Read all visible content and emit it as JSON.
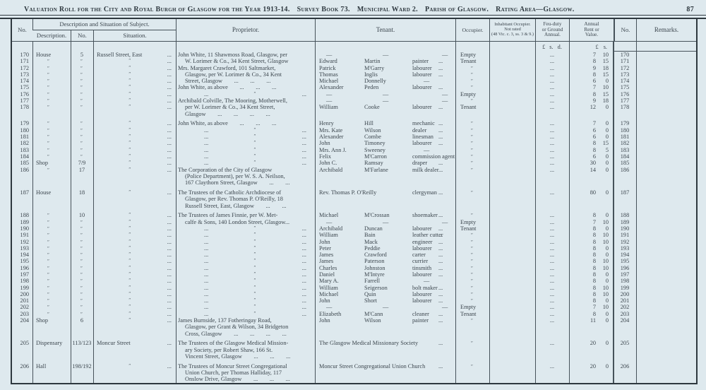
{
  "page": {
    "title_segments": [
      "Valuation Roll for the City and Royal Burgh of Glasgow for the Year 1913-14.",
      "Survey Book 73.",
      "Municipal Ward 2.",
      "Parish of Glasgow.",
      "Rating Area—Glasgow."
    ],
    "page_number": "87"
  },
  "header": {
    "col_no_left": "No.",
    "col_group": "Description and Situation of Subject.",
    "col_description": "Description.",
    "col_no2": "No.",
    "col_situation": "Situation.",
    "col_proprietor": "Proprietor.",
    "col_tenant": "Tenant.",
    "col_occupier": "Occupier.",
    "col_inhabitant_lines": [
      "Inhabitant Occupier.",
      "Not rated",
      "(48 Vic. c. 3, ss. 3 & 9.)"
    ],
    "col_feu_lines": [
      "Feu-duty",
      "or Ground",
      "Annual."
    ],
    "col_rent_lines": [
      "Annual",
      "Rent or",
      "Value."
    ],
    "col_no_right": "No.",
    "col_remarks": "Remarks.",
    "money_feu": "£ s. d.",
    "money_rent": "£ s."
  },
  "table": {
    "rows": [
      {
        "n": "170",
        "d": "House",
        "n2": "5",
        "s": "Russell Street, East",
        "sd": "...",
        "p": "John White, 11 Shawmoss Road, Glasgow, per",
        "t1": "—",
        "t2": "—",
        "t3": "—",
        "o": "Empty",
        "f": "...",
        "r": "7 10",
        "n3": "170"
      },
      {
        "n": "171",
        "d": "″",
        "n2": "″",
        "s": "″",
        "sd": "...",
        "p": "W. Lorimer & Co., 34 Kent Street, Glasgow",
        "pi": 1,
        "t1": "Edward",
        "t2": "Martin",
        "t3": "painter",
        "td": "...",
        "o": "Tenant",
        "f": "...",
        "r": "8 15",
        "n3": "171"
      },
      {
        "n": "172",
        "d": "″",
        "n2": "″",
        "s": "″",
        "sd": "...",
        "p": "Mrs. Margaret Crawford, 101 Saltmarket,",
        "t1": "Patrick",
        "t2": "M'Garry",
        "t3": "labourer",
        "td": "...",
        "o": "″",
        "f": "...",
        "r": "9 18",
        "n3": "172"
      },
      {
        "n": "173",
        "d": "″",
        "n2": "″",
        "s": "″",
        "sd": "...",
        "p": "Glasgow, per W. Lorimer & Co., 34 Kent",
        "pi": 1,
        "t1": "Thomas",
        "t2": "Inglis",
        "t3": "labourer",
        "td": "...",
        "o": "″",
        "f": "...",
        "r": "8 15",
        "n3": "173"
      },
      {
        "n": "174",
        "d": "″",
        "n2": "″",
        "s": "″",
        "sd": "...",
        "p": "Street, Glasgow  ...  ...  ...",
        "pi": 1,
        "t1": "Michael",
        "t2": "Donnelly",
        "t3": "—",
        "o": "″",
        "f": "...",
        "r": "6 0",
        "n3": "174"
      },
      {
        "n": "175",
        "d": "″",
        "n2": "″",
        "s": "″",
        "sd": "...",
        "p": "John White, as above  ...  ...  ...",
        "t1": "Alexander",
        "t2": "Peden",
        "t3": "labourer",
        "td": "...",
        "o": "″",
        "f": "...",
        "r": "7 10",
        "n3": "175"
      },
      {
        "n": "176",
        "d": "″",
        "n2": "″",
        "s": "″",
        "sd": "...",
        "p": "... ″ ...",
        "t1": "—",
        "t2": "—",
        "t3": "—",
        "o": "Empty",
        "f": "...",
        "r": "8 15",
        "n3": "176"
      },
      {
        "n": "177",
        "d": "″",
        "n2": "″",
        "s": "″",
        "sd": "...",
        "p": "Archibald Colville, The Mooring, Motherwell,",
        "t1": "—",
        "t2": "—",
        "t3": "—",
        "o": "″",
        "f": "...",
        "r": "9 18",
        "n3": "177"
      },
      {
        "n": "178",
        "d": "″",
        "n2": "″",
        "s": "″",
        "sd": "...",
        "p": "per W. Lorimer & Co., 34 Kent Street,",
        "pi": 1,
        "t1": "William",
        "t2": "Cooke",
        "t3": "labourer",
        "td": "...",
        "o": "Tenant",
        "f": "...",
        "r": "12 0",
        "n3": "178"
      },
      {
        "p": "Glasgow  ...  ...  ...  ...",
        "pi": 1
      },
      {
        "gap": 1,
        "n": "179",
        "d": "″",
        "n2": "″",
        "s": "″",
        "sd": "...",
        "p": "John White, as above  ...  ...  ...",
        "t1": "Henry",
        "t2": "Hill",
        "t3": "mechanic",
        "td": "...",
        "o": "″",
        "f": "...",
        "r": "7 0",
        "n3": "179"
      },
      {
        "n": "180",
        "d": "″",
        "n2": "″",
        "s": "″",
        "sd": "...",
        "p": "... ″ ...",
        "t1": "Mrs. Kate",
        "t2": "Wilson",
        "t3": "dealer",
        "td": "...",
        "o": "″",
        "f": "...",
        "r": "6 0",
        "n3": "180"
      },
      {
        "n": "181",
        "d": "″",
        "n2": "″",
        "s": "″",
        "sd": "...",
        "p": "... ″ ...",
        "t1": "Alexander",
        "t2": "Combe",
        "t3": "linesman",
        "td": "...",
        "o": "″",
        "f": "...",
        "r": "6 0",
        "n3": "181"
      },
      {
        "n": "182",
        "d": "″",
        "n2": "″",
        "s": "″",
        "sd": "...",
        "p": "... ″ ...",
        "t1": "John",
        "t2": "Timoney",
        "t3": "labourer",
        "td": "...",
        "o": "″",
        "f": "...",
        "r": "8 15",
        "n3": "182"
      },
      {
        "n": "183",
        "d": "″",
        "n2": "″",
        "s": "″",
        "sd": "...",
        "p": "... ″ ...",
        "t1": "Mrs. Ann J.",
        "t2": "Sweeney",
        "t3": "—",
        "o": "″",
        "f": "...",
        "r": "8 5",
        "n3": "183"
      },
      {
        "n": "184",
        "d": "″",
        "n2": "″",
        "s": "″",
        "sd": "...",
        "p": "... ″ ...",
        "t1": "Felix",
        "t2": "M'Carron",
        "t3": "commission agent",
        "o": "″",
        "f": "...",
        "r": "6 0",
        "n3": "184"
      },
      {
        "n": "185",
        "d": "Shop",
        "n2": "7/9",
        "s": "″",
        "sd": "...",
        "p": "... ″ ...",
        "t1": "John C.",
        "t2": "Ramsay",
        "t3": "draper",
        "td": "...",
        "o": "″",
        "f": "...",
        "r": "30 0",
        "n3": "185"
      },
      {
        "n": "186",
        "d": "″",
        "n2": "17",
        "s": "″",
        "sd": "...",
        "p": "The Corporation of the City of Glasgow",
        "t1": "Archibald",
        "t2": "M'Farlane",
        "t3": "milk dealer",
        "td": "...",
        "o": "″",
        "f": "...",
        "r": "14 0",
        "n3": "186"
      },
      {
        "p": "(Police Department), per W. S. A. Neilson,",
        "pi": 1
      },
      {
        "p": "167 Claythorn Street, Glasgow  ...  ...",
        "pi": 1
      },
      {
        "gap": 1,
        "n": "187",
        "d": "House",
        "n2": "18",
        "s": "″",
        "sd": "...",
        "p": "The Trustees of the Catholic Archdiocese of",
        "t1": "Rev. Thomas P. O'Reilly",
        "t2": "",
        "t3": "clergyman",
        "td": "...",
        "o": "″",
        "f": "...",
        "r": "80 0",
        "n3": "187"
      },
      {
        "p": "Glasgow, per Rev. Thomas P. O'Reilly, 18",
        "pi": 1
      },
      {
        "p": "Russell Street, East, Glasgow  ...  ...",
        "pi": 1
      },
      {
        "gap": 1,
        "n": "188",
        "d": "″",
        "n2": "10",
        "s": "″",
        "sd": "...",
        "p": "The Trustees of James Finnie, per W. Met-",
        "t1": "Michael",
        "t2": "M'Crossan",
        "t3": "shoemaker",
        "td": "...",
        "o": "″",
        "f": "...",
        "r": "8 0",
        "n3": "188"
      },
      {
        "n": "189",
        "d": "″",
        "n2": "″",
        "s": "″",
        "sd": "...",
        "p": "calfe & Sons, 140 London Street, Glasgow...",
        "pi": 1,
        "t1": "—",
        "t2": "—",
        "t3": "—",
        "o": "Empty",
        "f": "...",
        "r": "7 10",
        "n3": "189"
      },
      {
        "n": "190",
        "d": "″",
        "n2": "″",
        "s": "″",
        "sd": "...",
        "p": "... ″ ...",
        "t1": "Archibald",
        "t2": "Duncan",
        "t3": "labourer",
        "td": "...",
        "o": "Tenant",
        "f": "...",
        "r": "8 0",
        "n3": "190"
      },
      {
        "n": "191",
        "d": "″",
        "n2": "″",
        "s": "″",
        "sd": "...",
        "p": "... ″ ...",
        "t1": "William",
        "t2": "Bain",
        "t3": "leather cutter",
        "td": "...",
        "o": "″",
        "f": "...",
        "r": "8 10",
        "n3": "191"
      },
      {
        "n": "192",
        "d": "″",
        "n2": "″",
        "s": "″",
        "sd": "...",
        "p": "... ″ ...",
        "t1": "John",
        "t2": "Mack",
        "t3": "engineer",
        "td": "...",
        "o": "″",
        "f": "...",
        "r": "8 10",
        "n3": "192"
      },
      {
        "n": "193",
        "d": "″",
        "n2": "″",
        "s": "″",
        "sd": "...",
        "p": "... ″ ...",
        "t1": "Peter",
        "t2": "Peddie",
        "t3": "labourer",
        "td": "...",
        "o": "″",
        "f": "...",
        "r": "8 0",
        "n3": "193"
      },
      {
        "n": "194",
        "d": "″",
        "n2": "″",
        "s": "″",
        "sd": "...",
        "p": "... ″ ...",
        "t1": "James",
        "t2": "Crawford",
        "t3": "carter",
        "td": "...",
        "o": "″",
        "f": "...",
        "r": "8 0",
        "n3": "194"
      },
      {
        "n": "195",
        "d": "″",
        "n2": "″",
        "s": "″",
        "sd": "...",
        "p": "... ″ ...",
        "t1": "James",
        "t2": "Paterson",
        "t3": "currier",
        "td": "...",
        "o": "″",
        "f": "...",
        "r": "8 10",
        "n3": "195"
      },
      {
        "n": "196",
        "d": "″",
        "n2": "″",
        "s": "″",
        "sd": "...",
        "p": "... ″ ...",
        "t1": "Charles",
        "t2": "Johnston",
        "t3": "tinsmith",
        "td": "...",
        "o": "″",
        "f": "...",
        "r": "8 10",
        "n3": "196"
      },
      {
        "n": "197",
        "d": "″",
        "n2": "″",
        "s": "″",
        "sd": "...",
        "p": "... ″ ...",
        "t1": "Daniel",
        "t2": "M'Intyre",
        "t3": "labourer",
        "td": "...",
        "o": "″",
        "f": "...",
        "r": "8 0",
        "n3": "197"
      },
      {
        "n": "198",
        "d": "″",
        "n2": "″",
        "s": "″",
        "sd": "...",
        "p": "... ″ ...",
        "t1": "Mary A.",
        "t2": "Farrell",
        "t3": "—",
        "o": "″",
        "f": "...",
        "r": "8 0",
        "n3": "198"
      },
      {
        "n": "199",
        "d": "″",
        "n2": "″",
        "s": "″",
        "sd": "...",
        "p": "... ″ ...",
        "t1": "William",
        "t2": "Seigerson",
        "t3": "bolt maker",
        "td": "...",
        "o": "″",
        "f": "...",
        "r": "8 10",
        "n3": "199"
      },
      {
        "n": "200",
        "d": "″",
        "n2": "″",
        "s": "″",
        "sd": "...",
        "p": "... ″ ...",
        "t1": "Michael",
        "t2": "Quin",
        "t3": "labourer",
        "td": "...",
        "o": "″",
        "f": "...",
        "r": "8 10",
        "n3": "200"
      },
      {
        "n": "201",
        "d": "″",
        "n2": "″",
        "s": "″",
        "sd": "...",
        "p": "... ″ ...",
        "t1": "John",
        "t2": "Short",
        "t3": "labourer",
        "td": "...",
        "o": "″",
        "f": "...",
        "r": "8 0",
        "n3": "201"
      },
      {
        "n": "202",
        "d": "″",
        "n2": "″",
        "s": "″",
        "sd": "...",
        "p": "... ″ ...",
        "t1": "—",
        "t2": "—",
        "t3": "—",
        "o": "Empty",
        "f": "...",
        "r": "7 10",
        "n3": "202"
      },
      {
        "n": "203",
        "d": "″",
        "n2": "″",
        "s": "″",
        "sd": "...",
        "p": "... ″ ...",
        "t1": "Elizabeth",
        "t2": "M'Cann",
        "t3": "cleaner",
        "td": "...",
        "o": "Tenant",
        "f": "...",
        "r": "8 0",
        "n3": "203"
      },
      {
        "n": "204",
        "d": "Shop",
        "n2": "6",
        "s": "″",
        "sd": "...",
        "p": "James Burnside, 137 Fotheringay Road,",
        "t1": "John",
        "t2": "Wilson",
        "t3": "painter",
        "td": "...",
        "o": "″",
        "f": "...",
        "r": "11 0",
        "n3": "204"
      },
      {
        "p": "Glasgow, per Grant & Wilson, 34 Bridgeton",
        "pi": 1
      },
      {
        "p": "Cross, Glasgow  ...  ...  ...  ...",
        "pi": 1
      },
      {
        "gap": 1,
        "n": "205",
        "d": "Dispensary",
        "n2": "113/123",
        "s": "Moncur Street",
        "sd": "...",
        "p": "The Trustees of the Glasgow Medical Mission-",
        "t1": "The Glasgow Medical Missionary Society",
        "t2": "",
        "t3": "",
        "td": "...",
        "o": "″",
        "f": "...",
        "r": "20 0",
        "n3": "205"
      },
      {
        "p": "ary Society, per Robert Shaw, 166 St.",
        "pi": 1
      },
      {
        "p": "Vincent Street, Glasgow  ...  ...  ...",
        "pi": 1
      },
      {
        "gap": 1,
        "n": "206",
        "d": "Hall",
        "n2": "198/192",
        "s": "″",
        "sd": "...",
        "p": "The Trustees of Moncur Street Congregational",
        "t1": "Moncur Street Congregational Union Church",
        "t2": "",
        "t3": "",
        "td": "...",
        "o": "″",
        "f": "...",
        "r": "20 0",
        "n3": "206"
      },
      {
        "p": "Union Church, per Thomas Halliday, 117",
        "pi": 1
      },
      {
        "p": "Onslow Drive, Glasgow  ...  ...  ...",
        "pi": 1
      }
    ]
  }
}
